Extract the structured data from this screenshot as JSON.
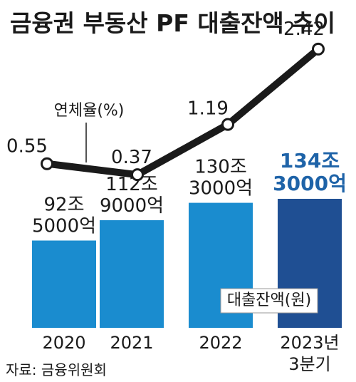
{
  "title": "금융권 부동산 PF 대출잔액 추이",
  "source": "자료: 금융위원회",
  "colors": {
    "bar": "#1a8ccf",
    "bar_highlight": "#1f4f93",
    "line": "#1a1a1a",
    "accent_text": "#1e63a8"
  },
  "chart_data": {
    "type": "bar",
    "categories": [
      "2020",
      "2021",
      "2022",
      "2023년\n3분기"
    ],
    "series": [
      {
        "name": "대출잔액(원)",
        "type": "bar",
        "values": [
          92.5,
          112.9,
          130.3,
          134.3
        ],
        "labels": [
          "92조\n5000억",
          "112조\n9000억",
          "130조\n3000억",
          "134조\n3000억"
        ]
      },
      {
        "name": "연체율(%)",
        "type": "line",
        "values": [
          0.55,
          0.37,
          1.19,
          2.42
        ],
        "labels": [
          "0.55",
          "0.37",
          "1.19",
          "2.42"
        ]
      }
    ],
    "highlight_index": 3,
    "ylim_bar": [
      0,
      150
    ],
    "ylim_line": [
      0,
      3
    ],
    "grid": false
  }
}
